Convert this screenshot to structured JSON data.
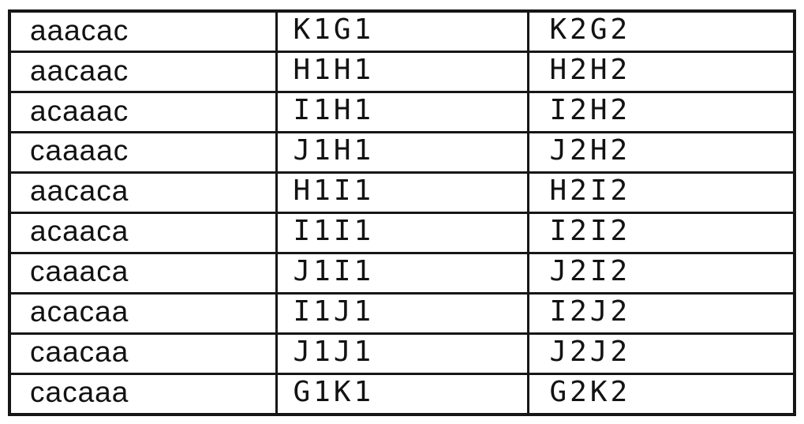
{
  "colors": {
    "background": "#ffffff",
    "border": "#161616",
    "text": "#121212"
  },
  "table": {
    "row_count": 10,
    "column_count": 3,
    "rows": [
      [
        "aaacac",
        "K1G1",
        "K2G2"
      ],
      [
        "aacaac",
        "H1H1",
        "H2H2"
      ],
      [
        "acaaac",
        "I1H1",
        "I2H2"
      ],
      [
        "caaaac",
        "J1H1",
        "J2H2"
      ],
      [
        "aacaca",
        "H1I1",
        "H2I2"
      ],
      [
        "acaaca",
        "I1I1",
        "I2I2"
      ],
      [
        "caaaca",
        "J1I1",
        "J2I2"
      ],
      [
        "acacaa",
        "I1J1",
        "I2J2"
      ],
      [
        "caacaa",
        "J1J1",
        "J2J2"
      ],
      [
        "cacaaa",
        "G1K1",
        "G2K2"
      ]
    ]
  }
}
